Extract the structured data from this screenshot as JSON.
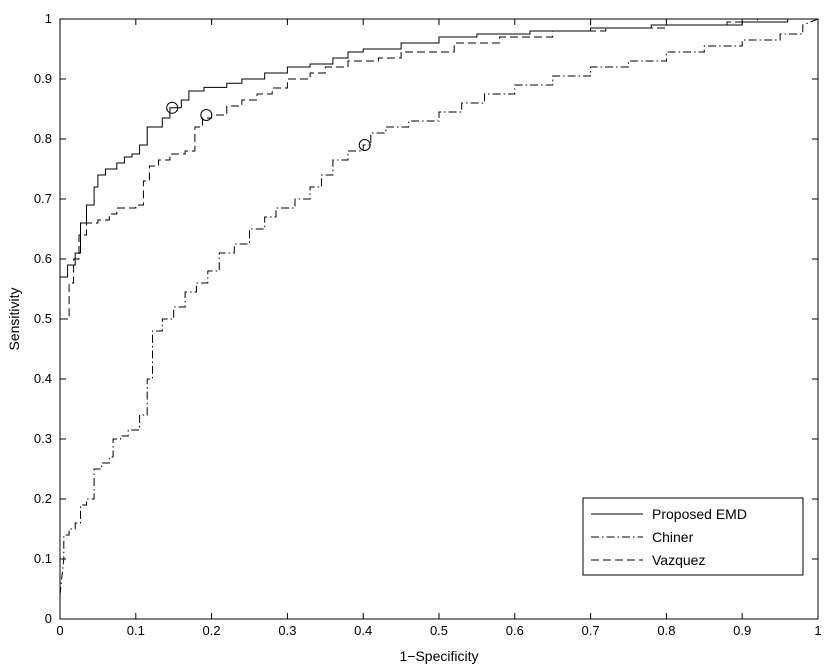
{
  "chart_data": {
    "type": "line",
    "title": "",
    "xlabel": "1−Specificity",
    "ylabel": "Sensitivity",
    "xlim": [
      0,
      1
    ],
    "ylim": [
      0,
      1
    ],
    "xticks": [
      0,
      0.1,
      0.2,
      0.3,
      0.4,
      0.5,
      0.6,
      0.7,
      0.8,
      0.9,
      1
    ],
    "yticks": [
      0,
      0.1,
      0.2,
      0.3,
      0.4,
      0.5,
      0.6,
      0.7,
      0.8,
      0.9,
      1
    ],
    "xtick_labels": [
      "0",
      "0.1",
      "0.2",
      "0.3",
      "0.4",
      "0.5",
      "0.6",
      "0.7",
      "0.8",
      "0.9",
      "1"
    ],
    "ytick_labels": [
      "0",
      "0.1",
      "0.2",
      "0.3",
      "0.4",
      "0.5",
      "0.6",
      "0.7",
      "0.8",
      "0.9",
      "1"
    ],
    "grid": false,
    "legend_position": "bottom-right",
    "series": [
      {
        "name": "Proposed EMD",
        "style": "solid",
        "color": "#000000",
        "operating_point": [
          0.148,
          0.852
        ],
        "points": [
          [
            0,
            0.57
          ],
          [
            0.01,
            0.57
          ],
          [
            0.01,
            0.59
          ],
          [
            0.02,
            0.59
          ],
          [
            0.02,
            0.61
          ],
          [
            0.027,
            0.61
          ],
          [
            0.027,
            0.66
          ],
          [
            0.035,
            0.66
          ],
          [
            0.035,
            0.69
          ],
          [
            0.045,
            0.69
          ],
          [
            0.045,
            0.72
          ],
          [
            0.05,
            0.72
          ],
          [
            0.05,
            0.74
          ],
          [
            0.06,
            0.74
          ],
          [
            0.06,
            0.75
          ],
          [
            0.075,
            0.75
          ],
          [
            0.075,
            0.76
          ],
          [
            0.085,
            0.76
          ],
          [
            0.085,
            0.77
          ],
          [
            0.095,
            0.77
          ],
          [
            0.095,
            0.775
          ],
          [
            0.105,
            0.775
          ],
          [
            0.105,
            0.79
          ],
          [
            0.115,
            0.79
          ],
          [
            0.115,
            0.82
          ],
          [
            0.135,
            0.82
          ],
          [
            0.135,
            0.835
          ],
          [
            0.145,
            0.835
          ],
          [
            0.145,
            0.852
          ],
          [
            0.16,
            0.852
          ],
          [
            0.16,
            0.865
          ],
          [
            0.17,
            0.865
          ],
          [
            0.17,
            0.88
          ],
          [
            0.19,
            0.88
          ],
          [
            0.19,
            0.886
          ],
          [
            0.22,
            0.886
          ],
          [
            0.22,
            0.893
          ],
          [
            0.24,
            0.893
          ],
          [
            0.24,
            0.9
          ],
          [
            0.27,
            0.9
          ],
          [
            0.27,
            0.91
          ],
          [
            0.3,
            0.91
          ],
          [
            0.3,
            0.92
          ],
          [
            0.33,
            0.92
          ],
          [
            0.33,
            0.925
          ],
          [
            0.36,
            0.925
          ],
          [
            0.36,
            0.935
          ],
          [
            0.38,
            0.935
          ],
          [
            0.38,
            0.945
          ],
          [
            0.4,
            0.945
          ],
          [
            0.4,
            0.95
          ],
          [
            0.45,
            0.95
          ],
          [
            0.45,
            0.96
          ],
          [
            0.5,
            0.96
          ],
          [
            0.5,
            0.97
          ],
          [
            0.55,
            0.97
          ],
          [
            0.55,
            0.975
          ],
          [
            0.62,
            0.975
          ],
          [
            0.62,
            0.98
          ],
          [
            0.7,
            0.98
          ],
          [
            0.7,
            0.985
          ],
          [
            0.78,
            0.985
          ],
          [
            0.78,
            0.99
          ],
          [
            0.9,
            0.99
          ],
          [
            0.9,
            0.995
          ],
          [
            0.96,
            0.995
          ],
          [
            0.96,
            1.0
          ],
          [
            1.0,
            1.0
          ]
        ]
      },
      {
        "name": "Chiner",
        "style": "dashdot",
        "color": "#000000",
        "operating_point": [
          0.402,
          0.79
        ],
        "points": [
          [
            0,
            0.04
          ],
          [
            0.005,
            0.1
          ],
          [
            0.005,
            0.14
          ],
          [
            0.012,
            0.14
          ],
          [
            0.012,
            0.15
          ],
          [
            0.02,
            0.15
          ],
          [
            0.02,
            0.16
          ],
          [
            0.027,
            0.16
          ],
          [
            0.027,
            0.19
          ],
          [
            0.035,
            0.19
          ],
          [
            0.035,
            0.2
          ],
          [
            0.045,
            0.2
          ],
          [
            0.045,
            0.25
          ],
          [
            0.055,
            0.25
          ],
          [
            0.055,
            0.26
          ],
          [
            0.065,
            0.26
          ],
          [
            0.065,
            0.27
          ],
          [
            0.07,
            0.27
          ],
          [
            0.07,
            0.3
          ],
          [
            0.08,
            0.3
          ],
          [
            0.08,
            0.305
          ],
          [
            0.09,
            0.305
          ],
          [
            0.09,
            0.315
          ],
          [
            0.105,
            0.315
          ],
          [
            0.105,
            0.34
          ],
          [
            0.115,
            0.34
          ],
          [
            0.115,
            0.4
          ],
          [
            0.122,
            0.4
          ],
          [
            0.122,
            0.48
          ],
          [
            0.135,
            0.48
          ],
          [
            0.135,
            0.5
          ],
          [
            0.15,
            0.5
          ],
          [
            0.15,
            0.52
          ],
          [
            0.165,
            0.52
          ],
          [
            0.165,
            0.545
          ],
          [
            0.18,
            0.545
          ],
          [
            0.18,
            0.56
          ],
          [
            0.195,
            0.56
          ],
          [
            0.195,
            0.58
          ],
          [
            0.21,
            0.58
          ],
          [
            0.21,
            0.61
          ],
          [
            0.23,
            0.61
          ],
          [
            0.23,
            0.625
          ],
          [
            0.25,
            0.625
          ],
          [
            0.25,
            0.65
          ],
          [
            0.27,
            0.65
          ],
          [
            0.27,
            0.67
          ],
          [
            0.285,
            0.67
          ],
          [
            0.285,
            0.685
          ],
          [
            0.31,
            0.685
          ],
          [
            0.31,
            0.7
          ],
          [
            0.33,
            0.7
          ],
          [
            0.33,
            0.72
          ],
          [
            0.345,
            0.72
          ],
          [
            0.345,
            0.74
          ],
          [
            0.36,
            0.74
          ],
          [
            0.36,
            0.765
          ],
          [
            0.38,
            0.765
          ],
          [
            0.38,
            0.78
          ],
          [
            0.4,
            0.78
          ],
          [
            0.4,
            0.79
          ],
          [
            0.41,
            0.79
          ],
          [
            0.41,
            0.81
          ],
          [
            0.43,
            0.81
          ],
          [
            0.43,
            0.82
          ],
          [
            0.46,
            0.82
          ],
          [
            0.46,
            0.83
          ],
          [
            0.5,
            0.83
          ],
          [
            0.5,
            0.845
          ],
          [
            0.53,
            0.845
          ],
          [
            0.53,
            0.86
          ],
          [
            0.56,
            0.86
          ],
          [
            0.56,
            0.875
          ],
          [
            0.6,
            0.875
          ],
          [
            0.6,
            0.89
          ],
          [
            0.65,
            0.89
          ],
          [
            0.65,
            0.905
          ],
          [
            0.7,
            0.905
          ],
          [
            0.7,
            0.92
          ],
          [
            0.75,
            0.92
          ],
          [
            0.75,
            0.93
          ],
          [
            0.8,
            0.93
          ],
          [
            0.8,
            0.945
          ],
          [
            0.85,
            0.945
          ],
          [
            0.85,
            0.955
          ],
          [
            0.9,
            0.955
          ],
          [
            0.9,
            0.965
          ],
          [
            0.95,
            0.965
          ],
          [
            0.95,
            0.975
          ],
          [
            0.98,
            0.975
          ],
          [
            0.98,
            0.99
          ],
          [
            1.0,
            1.0
          ]
        ]
      },
      {
        "name": "Vazquez",
        "style": "dashed",
        "color": "#000000",
        "operating_point": [
          0.193,
          0.84
        ],
        "points": [
          [
            0,
            0.5
          ],
          [
            0.012,
            0.5
          ],
          [
            0.012,
            0.56
          ],
          [
            0.018,
            0.56
          ],
          [
            0.018,
            0.6
          ],
          [
            0.025,
            0.6
          ],
          [
            0.025,
            0.64
          ],
          [
            0.035,
            0.64
          ],
          [
            0.035,
            0.66
          ],
          [
            0.05,
            0.66
          ],
          [
            0.05,
            0.665
          ],
          [
            0.065,
            0.665
          ],
          [
            0.065,
            0.675
          ],
          [
            0.075,
            0.675
          ],
          [
            0.075,
            0.685
          ],
          [
            0.1,
            0.685
          ],
          [
            0.1,
            0.69
          ],
          [
            0.11,
            0.69
          ],
          [
            0.11,
            0.73
          ],
          [
            0.118,
            0.73
          ],
          [
            0.118,
            0.755
          ],
          [
            0.13,
            0.755
          ],
          [
            0.13,
            0.765
          ],
          [
            0.145,
            0.765
          ],
          [
            0.145,
            0.775
          ],
          [
            0.165,
            0.775
          ],
          [
            0.165,
            0.78
          ],
          [
            0.178,
            0.78
          ],
          [
            0.178,
            0.82
          ],
          [
            0.188,
            0.82
          ],
          [
            0.188,
            0.835
          ],
          [
            0.2,
            0.835
          ],
          [
            0.2,
            0.84
          ],
          [
            0.22,
            0.84
          ],
          [
            0.22,
            0.855
          ],
          [
            0.24,
            0.855
          ],
          [
            0.24,
            0.865
          ],
          [
            0.26,
            0.865
          ],
          [
            0.26,
            0.875
          ],
          [
            0.28,
            0.875
          ],
          [
            0.28,
            0.885
          ],
          [
            0.3,
            0.885
          ],
          [
            0.3,
            0.9
          ],
          [
            0.33,
            0.9
          ],
          [
            0.33,
            0.91
          ],
          [
            0.35,
            0.91
          ],
          [
            0.35,
            0.92
          ],
          [
            0.38,
            0.92
          ],
          [
            0.38,
            0.93
          ],
          [
            0.42,
            0.93
          ],
          [
            0.42,
            0.935
          ],
          [
            0.45,
            0.935
          ],
          [
            0.45,
            0.945
          ],
          [
            0.52,
            0.945
          ],
          [
            0.52,
            0.96
          ],
          [
            0.58,
            0.96
          ],
          [
            0.58,
            0.97
          ],
          [
            0.65,
            0.97
          ],
          [
            0.65,
            0.98
          ],
          [
            0.72,
            0.98
          ],
          [
            0.72,
            0.985
          ],
          [
            0.8,
            0.985
          ],
          [
            0.8,
            0.99
          ],
          [
            0.88,
            0.99
          ],
          [
            0.88,
            0.995
          ],
          [
            0.92,
            0.995
          ],
          [
            0.92,
            1.0
          ],
          [
            1.0,
            1.0
          ]
        ]
      }
    ]
  }
}
